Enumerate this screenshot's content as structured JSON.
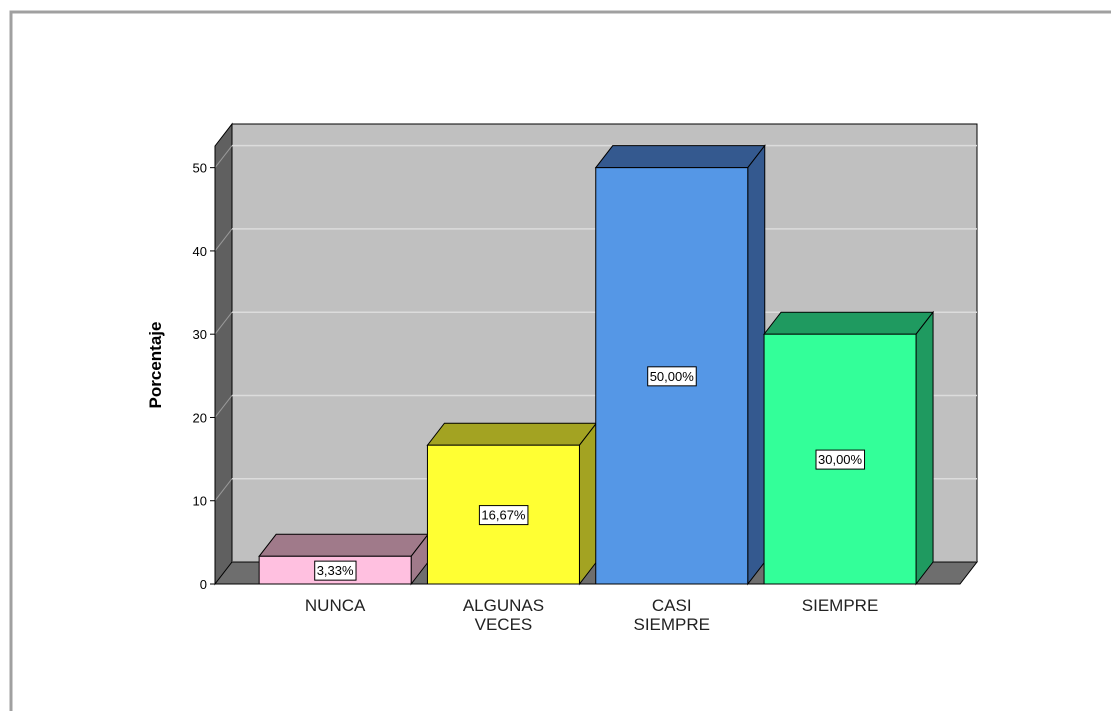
{
  "chart_data": {
    "type": "bar3d",
    "y_label": "Porcentaje",
    "categories": [
      "NUNCA",
      "ALGUNAS VECES",
      "CASI SIEMPRE",
      "SIEMPRE"
    ],
    "values": [
      3.33,
      16.67,
      50,
      30
    ],
    "value_labels": [
      "3,33%",
      "16,67%",
      "50,00%",
      "30,00%"
    ],
    "colors": [
      "#ffc0e0",
      "#ffff33",
      "#5597e6",
      "#33ff99"
    ],
    "top_colors": [
      "#a07a8a",
      "#a3a322",
      "#34598f",
      "#1f9a60"
    ],
    "ylim": [
      0,
      52.6
    ],
    "yticks": [
      0,
      10,
      20,
      30,
      40,
      50
    ],
    "grid": true
  }
}
